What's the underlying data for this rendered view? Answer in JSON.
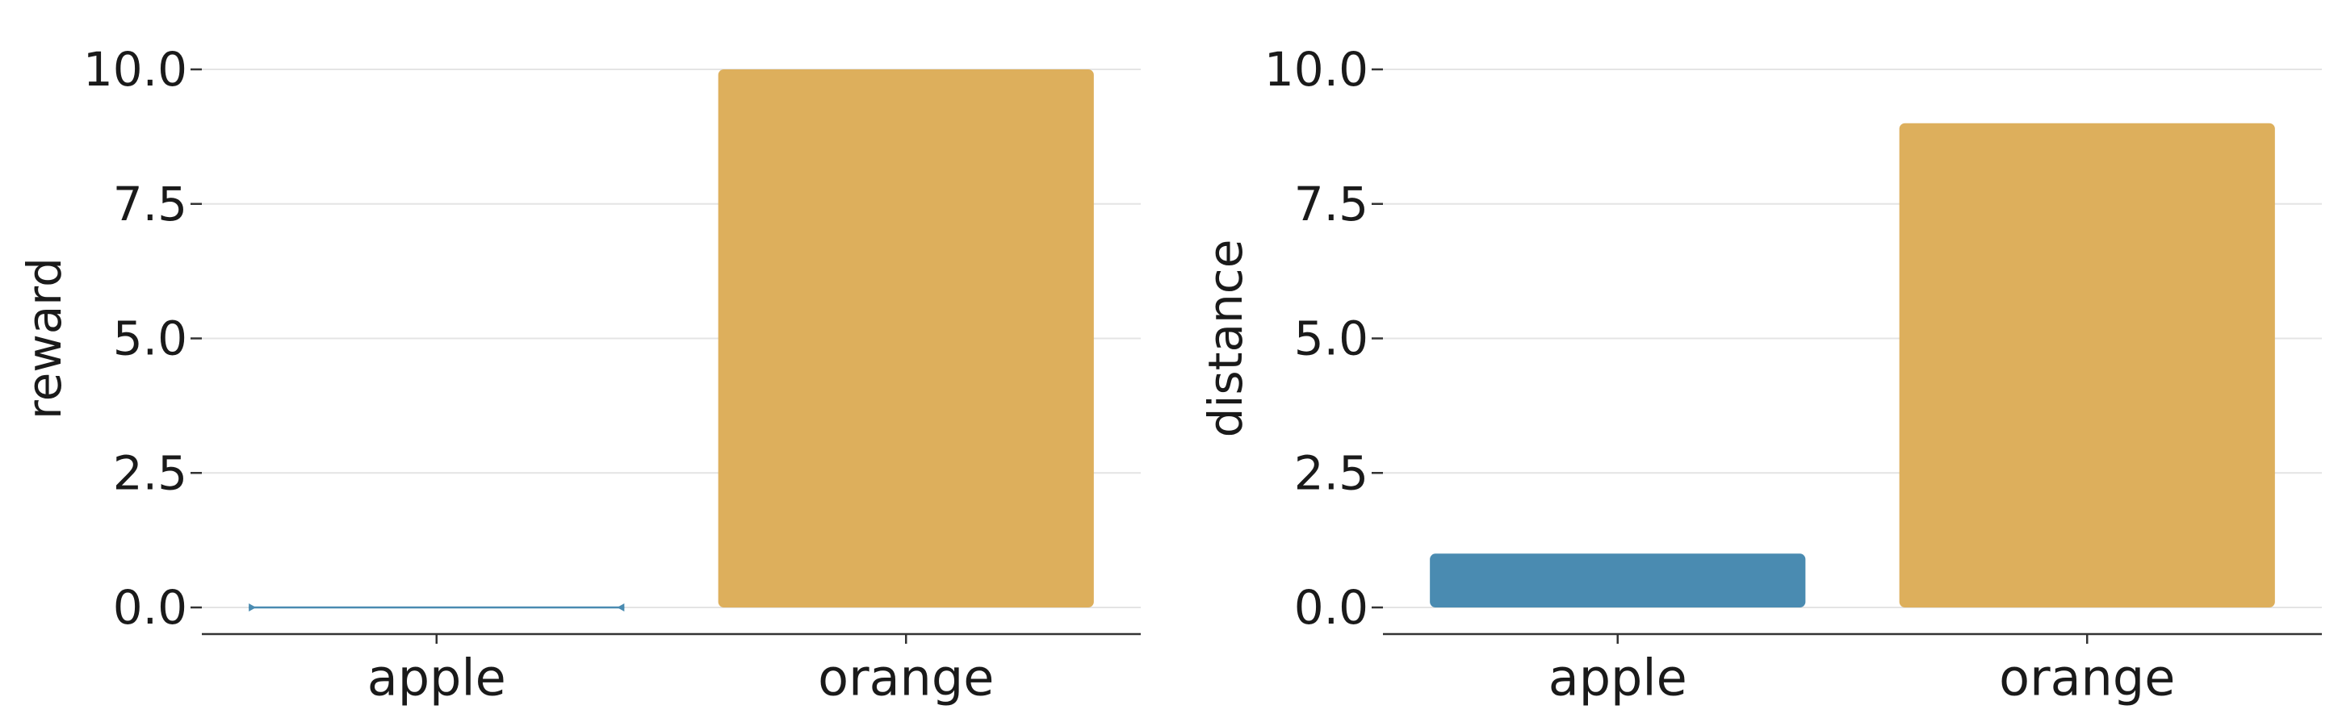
{
  "colors": {
    "apple": "#4a8bb1",
    "orange": "#ddaf5c"
  },
  "chart_data": [
    {
      "type": "bar",
      "categories": [
        "apple",
        "orange"
      ],
      "values": [
        0.0,
        10.0
      ],
      "ylabel": "reward",
      "xlabel": "",
      "ylim": [
        -0.5,
        10.5
      ],
      "yticks": [
        "0.0",
        "2.5",
        "5.0",
        "7.5",
        "10.0"
      ],
      "grid": true
    },
    {
      "type": "bar",
      "categories": [
        "apple",
        "orange"
      ],
      "values": [
        1.0,
        9.0
      ],
      "ylabel": "distance",
      "xlabel": "",
      "ylim": [
        -0.5,
        10.5
      ],
      "yticks": [
        "0.0",
        "2.5",
        "5.0",
        "7.5",
        "10.0"
      ],
      "grid": true
    }
  ]
}
